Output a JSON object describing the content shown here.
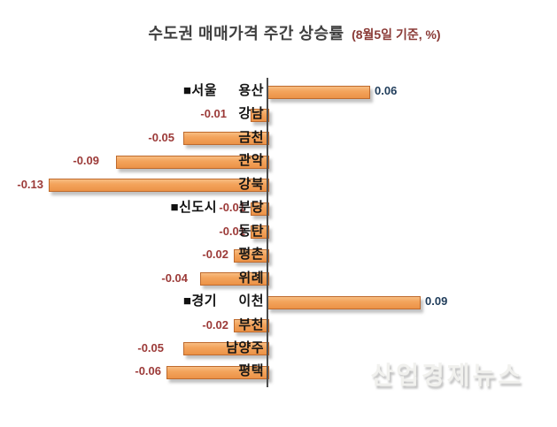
{
  "title": {
    "main": "수도권 매매가격 주간 상승률",
    "suffix": "(8월5일 기준, %)"
  },
  "watermark": "산업경제뉴스",
  "colors": {
    "bar_fill": "#F2A35C",
    "bar_border": "#BE6A2D",
    "axis_line": "#4D4D4D",
    "positive_value_text": "#1F3C5A",
    "negative_value_text": "#9C3A38",
    "title_main_text": "#404040",
    "title_suffix_text": "#8A3A36",
    "category_text": "#141414",
    "background": "#FFFFFF"
  },
  "chart_data": {
    "type": "bar",
    "orientation": "horizontal",
    "title": "수도권 매매가격 주간 상승률 (8월5일 기준, %)",
    "value_unit": "%",
    "xlim": [
      -0.145,
      0.105
    ],
    "grid": false,
    "legend": "none",
    "groups": [
      "서울",
      "신도시",
      "경기"
    ],
    "rows": [
      {
        "group": "■서울",
        "label": "용산",
        "value": 0.06,
        "display": "0.06"
      },
      {
        "label": "강남",
        "value": -0.01,
        "display": "-0.01",
        "nudge": 21
      },
      {
        "label": "금천",
        "value": -0.05,
        "display": "-0.05",
        "nudge": 4
      },
      {
        "label": "관악",
        "value": -0.09,
        "display": "-0.09",
        "nudge": 13
      },
      {
        "label": "강북",
        "value": -0.13,
        "display": "-0.13"
      },
      {
        "group": "■신도시",
        "label": "분당",
        "value": -0.01,
        "display": "-0.01"
      },
      {
        "label": "동탄",
        "value": -0.01,
        "display": "-0.01"
      },
      {
        "label": "평촌",
        "value": -0.02,
        "display": "-0.02"
      },
      {
        "label": "위례",
        "value": -0.04,
        "display": "-0.04",
        "nudge": 8
      },
      {
        "group": "■경기",
        "label": "이천",
        "value": 0.09,
        "display": "0.09"
      },
      {
        "label": "부천",
        "value": -0.02,
        "display": "-0.02"
      },
      {
        "label": "남양주",
        "value": -0.05,
        "display": "-0.05",
        "nudge": 16
      },
      {
        "label": "평택",
        "value": -0.06,
        "display": "-0.06"
      }
    ]
  }
}
